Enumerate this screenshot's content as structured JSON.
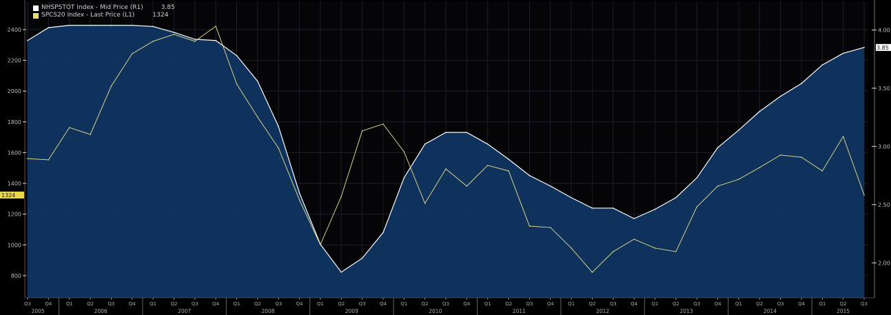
{
  "legend": [
    {
      "label": "NHSPSTOT Index - Mid Price (R1)",
      "value": "3.85",
      "color": "#ffffff"
    },
    {
      "label": "SPCS20 Index - Last Price (L1)",
      "value": "1324",
      "color": "#e8e07a"
    }
  ],
  "colors": {
    "background": "#000000",
    "area_fill": "#0f3560",
    "area_line": "#ffffff",
    "line2": "#d9d38a",
    "last_left_box": "#e8d84a",
    "last_right_box": "#ffffff"
  },
  "chart_data": {
    "type": "area",
    "title": "",
    "xlabel": "",
    "ylabel": "",
    "grid": true,
    "legend_position": "top-left",
    "x": [
      "2005Q3",
      "2005Q4",
      "2006Q1",
      "2006Q2",
      "2006Q3",
      "2006Q4",
      "2007Q1",
      "2007Q2",
      "2007Q3",
      "2007Q4",
      "2008Q1",
      "2008Q2",
      "2008Q3",
      "2008Q4",
      "2009Q1",
      "2009Q2",
      "2009Q3",
      "2009Q4",
      "2010Q1",
      "2010Q2",
      "2010Q3",
      "2010Q4",
      "2011Q1",
      "2011Q2",
      "2011Q3",
      "2011Q4",
      "2012Q1",
      "2012Q2",
      "2012Q3",
      "2012Q4",
      "2013Q1",
      "2013Q2",
      "2013Q3",
      "2013Q4",
      "2014Q1",
      "2014Q2",
      "2014Q3",
      "2014Q4",
      "2015Q1",
      "2015Q2",
      "2015Q3"
    ],
    "x_tick_labels": [
      "Q3",
      "Q4",
      "Q1",
      "Q2",
      "Q3",
      "Q4",
      "Q1",
      "Q2",
      "Q3",
      "Q4",
      "Q1",
      "Q2",
      "Q3",
      "Q4",
      "Q1",
      "Q2",
      "Q3",
      "Q4",
      "Q1",
      "Q2",
      "Q3",
      "Q4",
      "Q1",
      "Q2",
      "Q3",
      "Q4",
      "Q1",
      "Q2",
      "Q3",
      "Q4",
      "Q1",
      "Q2",
      "Q3",
      "Q4",
      "Q1",
      "Q2",
      "Q3",
      "Q4",
      "Q1",
      "Q2",
      "Q3"
    ],
    "year_labels": [
      "2005",
      "2006",
      "2007",
      "2008",
      "2009",
      "2010",
      "2011",
      "2012",
      "2013",
      "2014",
      "2015"
    ],
    "series": [
      {
        "name": "NHSPSTOT Index - Mid Price (R1)",
        "axis": "right",
        "style": "area",
        "values": [
          3.91,
          4.02,
          4.04,
          4.04,
          4.04,
          4.04,
          4.03,
          3.98,
          3.92,
          3.91,
          3.78,
          3.56,
          3.17,
          2.6,
          2.16,
          1.92,
          2.04,
          2.26,
          2.73,
          3.02,
          3.12,
          3.12,
          3.02,
          2.89,
          2.75,
          2.66,
          2.56,
          2.47,
          2.47,
          2.38,
          2.46,
          2.56,
          2.73,
          2.99,
          3.14,
          3.3,
          3.43,
          3.54,
          3.7,
          3.8,
          3.85
        ]
      },
      {
        "name": "SPCS20 Index - Last Price (L1)",
        "axis": "left",
        "style": "line",
        "values": [
          1561,
          1553,
          1763,
          1718,
          2032,
          2243,
          2324,
          2369,
          2324,
          2422,
          2046,
          1831,
          1629,
          1292,
          1001,
          1315,
          1741,
          1786,
          1606,
          1270,
          1494,
          1382,
          1517,
          1481,
          1122,
          1113,
          979,
          822,
          956,
          1037,
          979,
          956,
          1247,
          1382,
          1426,
          1503,
          1584,
          1570,
          1481,
          1705,
          1324
        ]
      }
    ],
    "left_axis": {
      "ylim": [
        656,
        2458
      ],
      "ticks": [
        2400,
        2200,
        2000,
        1800,
        1600,
        1400,
        1200,
        1000,
        800
      ],
      "last_value_label": "1324"
    },
    "right_axis": {
      "ylim": [
        1.7,
        4.08
      ],
      "ticks": [
        4.0,
        3.5,
        3.0,
        2.5,
        2.0
      ],
      "last_value_label": "3.85"
    }
  }
}
